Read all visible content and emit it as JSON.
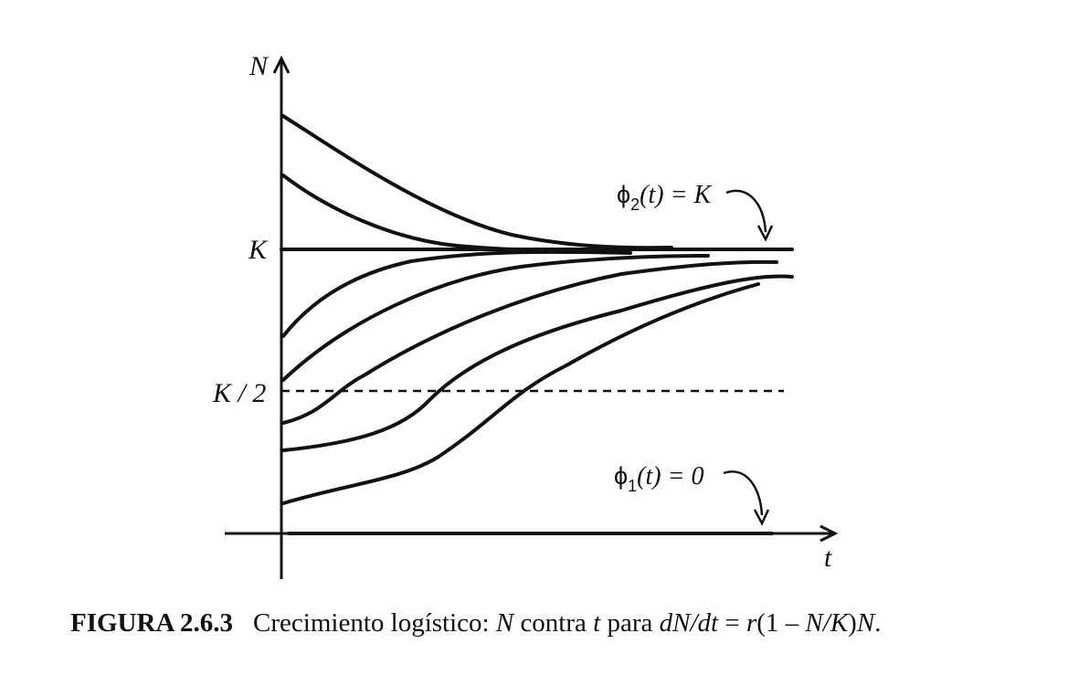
{
  "figure": {
    "axis_labels": {
      "y": "N",
      "x": "t"
    },
    "tick_labels": {
      "k": "K",
      "k_half": "K / 2"
    },
    "annotations": {
      "phi2": {
        "symbol": "ϕ",
        "subscript": "2",
        "arg": "(t)",
        "rhs": " = K"
      },
      "phi1": {
        "symbol": "ϕ",
        "subscript": "1",
        "arg": "(t)",
        "rhs": " = 0"
      }
    }
  },
  "caption": {
    "number": "FIGURA 2.6.3",
    "parts": [
      "Crecimiento logístico: ",
      "N",
      " contra ",
      "t",
      " para ",
      "dN/dt",
      " = ",
      "r",
      "(1 – ",
      "N/K",
      ")",
      "N",
      "."
    ]
  }
}
